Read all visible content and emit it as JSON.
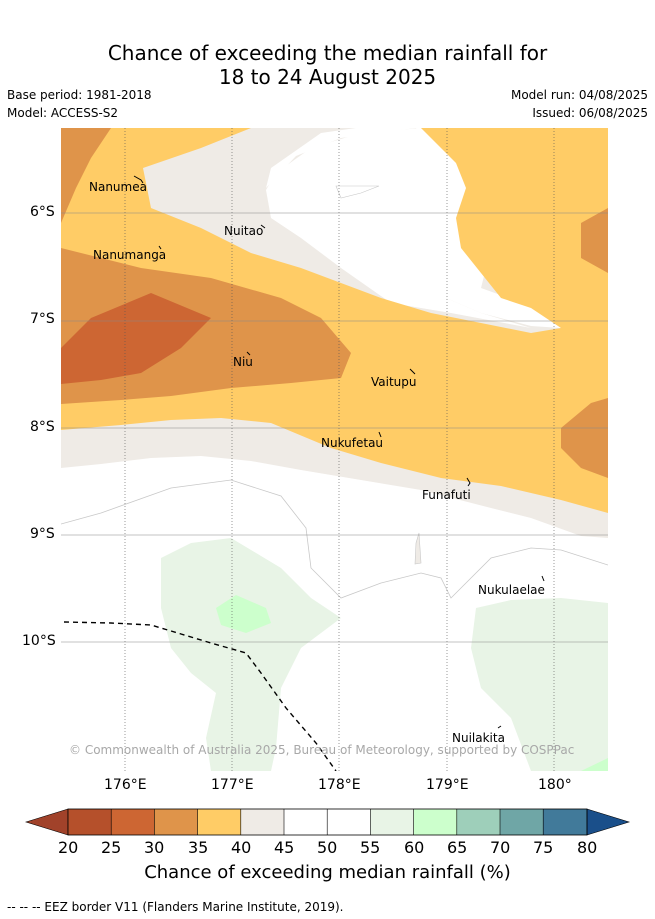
{
  "title": {
    "line1": "Chance of exceeding the median rainfall for",
    "line2": "18 to 24 August 2025"
  },
  "meta": {
    "base_period": "Base period: 1981-2018",
    "model": "Model: ACCESS-S2",
    "model_run": "Model run: 04/08/2025",
    "issued": "Issued: 06/08/2025"
  },
  "map": {
    "copyright": "© Commonwealth of Australia 2025, Bureau of Meteorology, supported by COSPPac",
    "lat_labels": [
      "6°S",
      "7°S",
      "8°S",
      "9°S",
      "10°S"
    ],
    "lon_labels": [
      "176°E",
      "177°E",
      "178°E",
      "179°E",
      "180°"
    ],
    "places": [
      "Nanumea",
      "Nuitao",
      "Nanumanga",
      "Niu",
      "Vaitupu",
      "Nukufetau",
      "Funafuti",
      "Nukulaelae",
      "Nuilakita"
    ],
    "colors": {
      "c20_25": "#b5502b",
      "c25_30": "#cd6633",
      "c30_35": "#df944a",
      "c35_40": "#ffcc66",
      "c40_45": "#efebe6",
      "c45_55": "#ffffff",
      "c55_60": "#e8f4e6",
      "c60_65": "#ccffcc",
      "c65_70": "#9ecfba",
      "c70_75": "#6fa6a6",
      "c75_80": "#417a9a",
      "c80_plus": "#1a4f8a",
      "under": "#a1422a"
    }
  },
  "colorbar": {
    "ticks": [
      "20",
      "25",
      "30",
      "35",
      "40",
      "45",
      "50",
      "55",
      "60",
      "65",
      "70",
      "75",
      "80"
    ],
    "title": "Chance of exceeding median rainfall (%)"
  },
  "footer": "-- -- -- EEZ border V11 (Flanders Marine Institute, 2019)."
}
